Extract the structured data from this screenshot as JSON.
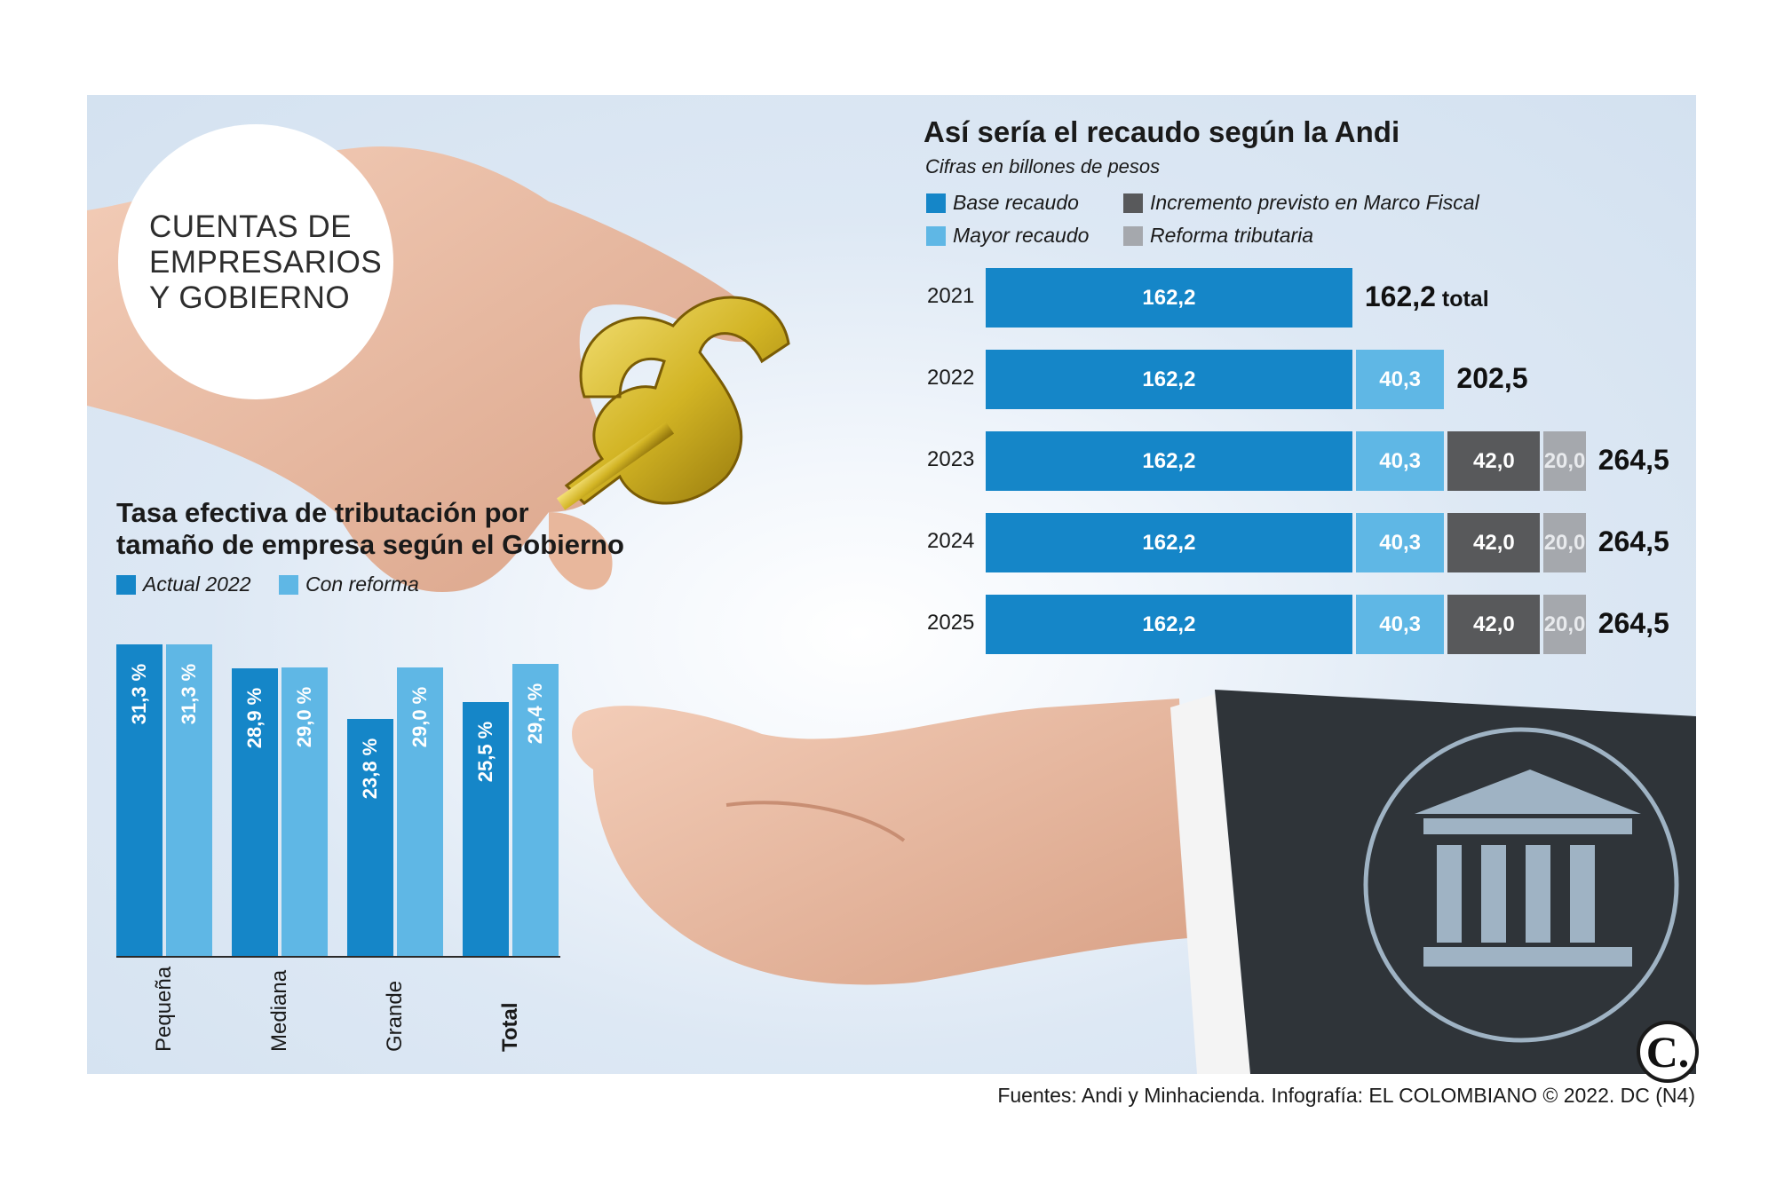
{
  "header": {
    "title": "CUENTAS DE\nEMPRESARIOS\nY GOBIERNO"
  },
  "colors": {
    "base": "#1586c8",
    "mayor": "#5fb7e5",
    "incremento": "#58595b",
    "reforma": "#a5a8ad"
  },
  "icons": [
    "dollar-sign-icon",
    "bank-building-icon",
    "hand-giving-icon",
    "hand-receiving-icon"
  ],
  "recaudo": {
    "title": "Así sería el recaudo según la Andi",
    "subtitle": "Cifras en billones de pesos",
    "legend": [
      "Base recaudo",
      "Incremento previsto en Marco Fiscal",
      "Mayor recaudo",
      "Reforma tributaria"
    ],
    "total_suffix": "total"
  },
  "tasa": {
    "title_line1": "Tasa efectiva de tributación por",
    "title_line2": "tamaño de empresa según el Gobierno",
    "legend": [
      "Actual 2022",
      "Con reforma"
    ]
  },
  "source": "Fuentes: Andi y Minhacienda. Infografía: EL COLOMBIANO © 2022. DC (N4)",
  "logo": "C.",
  "chart_data": [
    {
      "type": "bar",
      "orientation": "horizontal",
      "stacked": true,
      "title": "Así sería el recaudo según la Andi",
      "subtitle": "Cifras en billones de pesos",
      "categories": [
        "2021",
        "2022",
        "2023",
        "2024",
        "2025"
      ],
      "series": [
        {
          "name": "Base recaudo",
          "values": [
            162.2,
            162.2,
            162.2,
            162.2,
            162.2
          ],
          "labels": [
            "162,2",
            "162,2",
            "162,2",
            "162,2",
            "162,2"
          ]
        },
        {
          "name": "Mayor recaudo",
          "values": [
            0,
            40.3,
            40.3,
            40.3,
            40.3
          ],
          "labels": [
            "",
            "40,3",
            "40,3",
            "40,3",
            "40,3"
          ]
        },
        {
          "name": "Incremento previsto en Marco Fiscal",
          "values": [
            0,
            0,
            42.0,
            42.0,
            42.0
          ],
          "labels": [
            "",
            "",
            "42,0",
            "42,0",
            "42,0"
          ]
        },
        {
          "name": "Reforma tributaria",
          "values": [
            0,
            0,
            20.0,
            20.0,
            20.0
          ],
          "labels": [
            "",
            "",
            "20,0",
            "20,0",
            "20,0"
          ]
        }
      ],
      "totals": [
        "162,2",
        "202,5",
        "264,5",
        "264,5",
        "264,5"
      ],
      "legend_position": "top"
    },
    {
      "type": "bar",
      "orientation": "vertical",
      "title": "Tasa efectiva de tributación por tamaño de empresa según el Gobierno",
      "categories": [
        "Pequeña",
        "Mediana",
        "Grande",
        "Total"
      ],
      "series": [
        {
          "name": "Actual 2022",
          "values": [
            31.3,
            28.9,
            23.8,
            25.5
          ],
          "labels": [
            "31,3 %",
            "28,9 %",
            "23,8 %",
            "25,5 %"
          ]
        },
        {
          "name": "Con reforma",
          "values": [
            31.3,
            29.0,
            29.0,
            29.4
          ],
          "labels": [
            "31,3 %",
            "29,0 %",
            "29,0 %",
            "29,4 %"
          ]
        }
      ],
      "legend_position": "top-left"
    }
  ]
}
